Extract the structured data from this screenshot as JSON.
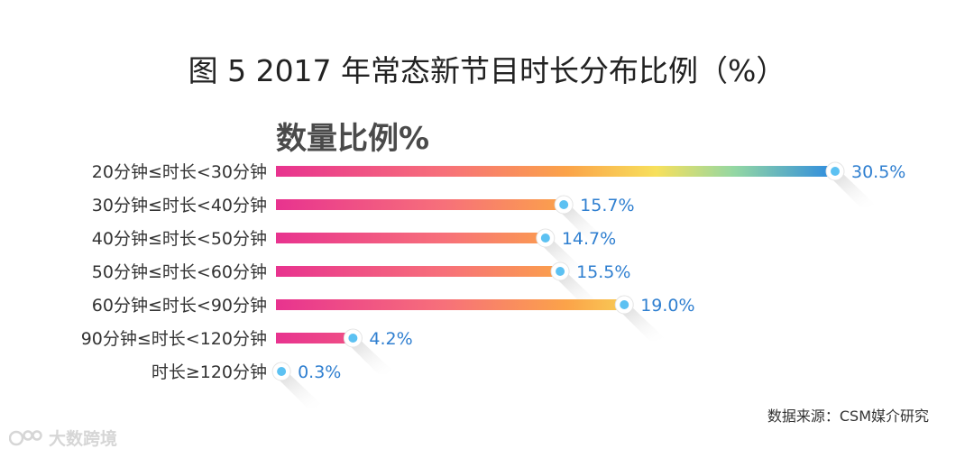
{
  "figure_title": "图 5  2017 年常态新节目时长分布比例（%）",
  "chart_data": {
    "type": "bar",
    "orientation": "horizontal",
    "title": "数量比例%",
    "categories": [
      "20分钟≤时长<30分钟",
      "30分钟≤时长<40分钟",
      "40分钟≤时长<50分钟",
      "50分钟≤时长<60分钟",
      "60分钟≤时长<90分钟",
      "90分钟≤时长<120分钟",
      "时长≥120分钟"
    ],
    "values": [
      30.5,
      15.7,
      14.7,
      15.5,
      19.0,
      4.2,
      0.3
    ],
    "value_labels": [
      "30.5%",
      "15.7%",
      "14.7%",
      "15.5%",
      "19.0%",
      "4.2%",
      "0.3%"
    ],
    "xlim": [
      0,
      30.5
    ],
    "grid": false,
    "colors": {
      "gradient_start": "#e8338f",
      "gradient_mid1": "#f7707a",
      "gradient_mid2": "#fba349",
      "gradient_mid3": "#f7e05c",
      "gradient_mid4": "#93d7a3",
      "gradient_end": "#2d8be0",
      "marker_fill": "#5cc1f2",
      "label_color": "#2f7fd0"
    }
  },
  "source_note": "数据来源：CSM媒介研究",
  "watermark_text": "大数跨境"
}
